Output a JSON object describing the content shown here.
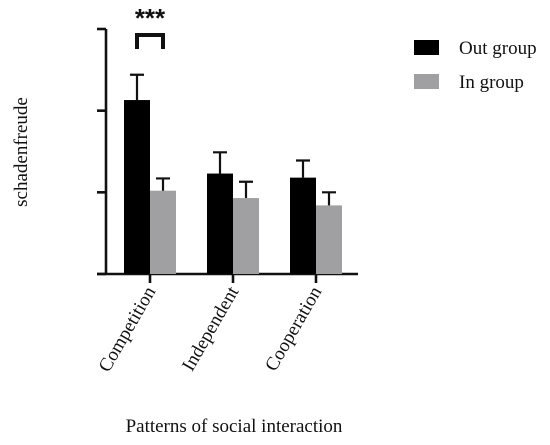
{
  "chart_data": {
    "type": "bar",
    "title": "",
    "xlabel": "Patterns of social interaction",
    "ylabel": "schadenfreude",
    "categories": [
      "Competition",
      "Independent",
      "Cooperation"
    ],
    "series": [
      {
        "name": "Out group",
        "color": "#000000",
        "values": [
          2.13,
          1.23,
          1.18
        ],
        "error": [
          0.31,
          0.26,
          0.21
        ]
      },
      {
        "name": "In group",
        "color": "#a0a0a2",
        "values": [
          1.02,
          0.93,
          0.84
        ],
        "error": [
          0.15,
          0.2,
          0.16
        ]
      }
    ],
    "ylim": [
      0,
      3
    ],
    "yticks": [
      0,
      1,
      2,
      3
    ],
    "ytick_labels_shown": false,
    "grid": false,
    "legend": "top-right",
    "annotations": [
      {
        "text": "***",
        "category": "Competition",
        "between": [
          "Out group",
          "In group"
        ]
      }
    ]
  }
}
